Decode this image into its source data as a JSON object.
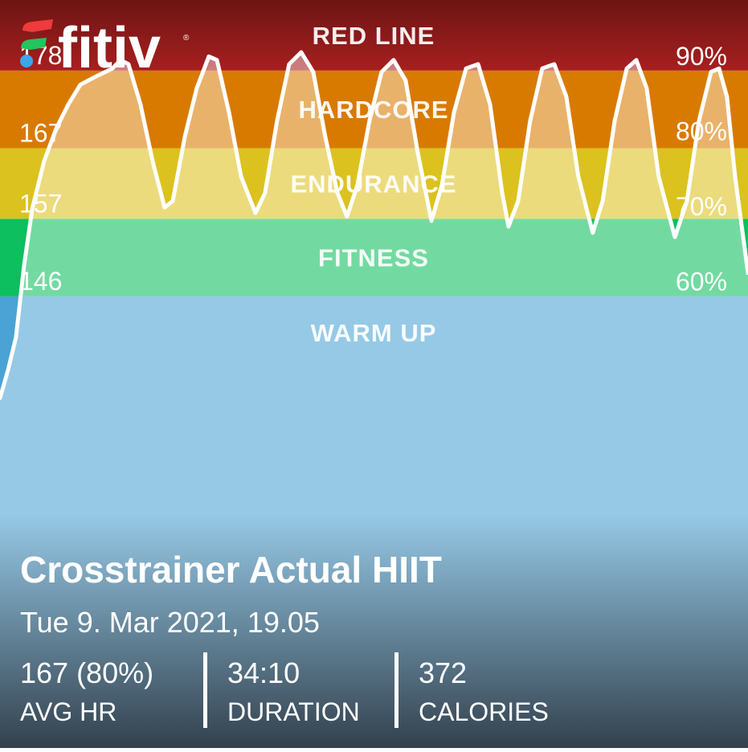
{
  "brand": "fitiv",
  "brand_mark": "®",
  "chart_data": {
    "type": "line",
    "zones": [
      {
        "name": "WARM UP",
        "from": 82,
        "color": "#4aa3d4"
      },
      {
        "name": "FITNESS",
        "from": 146,
        "color": "#0dbf5e"
      },
      {
        "name": "ENDURANCE",
        "from": 157,
        "color": "#dcc21e"
      },
      {
        "name": "HARDCORE",
        "from": 167,
        "color": "#d97a00"
      },
      {
        "name": "RED LINE",
        "from": 178,
        "color": "#a81f1f"
      }
    ],
    "x": [
      0,
      0.37,
      0.73,
      1.1,
      1.47,
      2.02,
      2.57,
      3.12,
      3.67,
      4.4,
      5.14,
      5.5,
      5.87,
      6.42,
      6.97,
      7.52,
      7.89,
      8.44,
      8.99,
      9.54,
      9.91,
      10.46,
      11.01,
      11.67,
      12.11,
      12.66,
      13.21,
      13.76,
      14.31,
      14.86,
      15.41,
      15.85,
      16.33,
      16.88,
      17.43,
      17.98,
      18.53,
      19.08,
      19.71,
      20.19,
      20.74,
      21.29,
      21.84,
      22.39,
      22.94,
      23.23,
      23.67,
      24.22,
      24.77,
      25.32,
      25.87,
      26.42,
      27.08,
      27.53,
      28.08,
      28.63,
      29.07,
      29.54,
      30.09,
      30.83,
      31.38,
      31.93,
      32.48,
      32.85,
      33.21,
      33.58,
      34.17
    ],
    "series": [
      {
        "color": "#ffffff",
        "values": [
          131.6,
          135.6,
          140.2,
          150.4,
          158.4,
          165.2,
          169.8,
          173.2,
          176.0,
          177.2,
          178.3,
          179.5,
          178.9,
          173.2,
          165.2,
          158.6,
          159.5,
          168.6,
          175.5,
          180.0,
          179.5,
          172.1,
          163.0,
          157.8,
          160.7,
          170.9,
          178.9,
          180.6,
          177.8,
          168.6,
          160.7,
          157.3,
          161.8,
          170.9,
          177.8,
          179.5,
          176.6,
          166.4,
          156.7,
          161.8,
          172.1,
          178.3,
          178.9,
          173.2,
          160.7,
          155.9,
          159.5,
          170.9,
          178.3,
          178.9,
          174.3,
          163.0,
          155.0,
          159.5,
          170.9,
          178.3,
          179.5,
          175.5,
          163.0,
          154.4,
          159.5,
          170.9,
          177.8,
          178.3,
          174.3,
          163.0,
          149.3
        ]
      }
    ],
    "xlim": [
      0,
      34.17
    ],
    "ylim": [
      82,
      188
    ],
    "yticks": [
      146,
      157,
      167,
      178
    ],
    "y2lim": [
      0,
      99.5
    ],
    "y2ticks": [
      {
        "value": 60,
        "label": "60%"
      },
      {
        "value": 70,
        "label": "70%"
      },
      {
        "value": 80,
        "label": "80%"
      },
      {
        "value": 90,
        "label": "90%"
      }
    ]
  },
  "workout": {
    "title": "Crosstrainer Actual HIIT",
    "date": "Tue 9. Mar 2021, 19.05",
    "stats": [
      {
        "value": "167 (80%)",
        "label": "AVG HR"
      },
      {
        "value": "34:10",
        "label": "DURATION"
      },
      {
        "value": "372",
        "label": "CALORIES"
      }
    ]
  }
}
